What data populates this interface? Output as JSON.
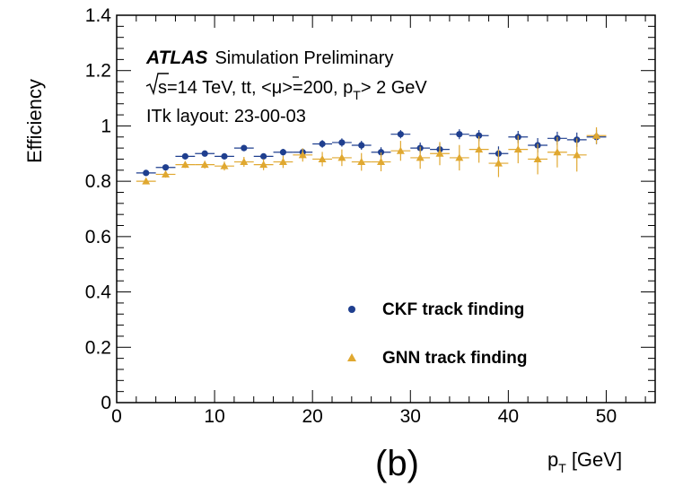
{
  "chart_data": {
    "type": "scatter",
    "xlabel_main": "p",
    "xlabel_sub": "T",
    "xlabel_unit": "[GeV]",
    "ylabel": "Efficiency",
    "xlim": [
      0,
      55
    ],
    "ylim": [
      0,
      1.4
    ],
    "x_ticks": [
      "0",
      "10",
      "20",
      "30",
      "40",
      "50"
    ],
    "y_ticks": [
      "0",
      "0.2",
      "0.4",
      "0.6",
      "0.8",
      "1",
      "1.2",
      "1.4"
    ],
    "annotations": {
      "atlas": "ATLAS",
      "atlas_suffix": "Simulation Preliminary",
      "line2_pre": "s",
      "line2_mid": "=14 TeV, tt, <μ>=200, p",
      "line2_sub": "T",
      "line2_post": "> 2 GeV",
      "line3": "ITk layout: 23-00-03"
    },
    "panel_label": "(b)",
    "series": [
      {
        "name": "CKF track finding",
        "color": "#1f3f8f",
        "marker": "circle",
        "points": [
          {
            "x": 3,
            "y": 0.83,
            "err": 0.005
          },
          {
            "x": 5,
            "y": 0.85,
            "err": 0.006
          },
          {
            "x": 7,
            "y": 0.89,
            "err": 0.007
          },
          {
            "x": 9,
            "y": 0.9,
            "err": 0.008
          },
          {
            "x": 11,
            "y": 0.89,
            "err": 0.009
          },
          {
            "x": 13,
            "y": 0.92,
            "err": 0.01
          },
          {
            "x": 15,
            "y": 0.89,
            "err": 0.01
          },
          {
            "x": 17,
            "y": 0.905,
            "err": 0.012
          },
          {
            "x": 19,
            "y": 0.905,
            "err": 0.013
          },
          {
            "x": 21,
            "y": 0.935,
            "err": 0.014
          },
          {
            "x": 23,
            "y": 0.94,
            "err": 0.015
          },
          {
            "x": 25,
            "y": 0.93,
            "err": 0.016
          },
          {
            "x": 27,
            "y": 0.905,
            "err": 0.018
          },
          {
            "x": 29,
            "y": 0.97,
            "err": 0.015
          },
          {
            "x": 31,
            "y": 0.92,
            "err": 0.02
          },
          {
            "x": 33,
            "y": 0.915,
            "err": 0.022
          },
          {
            "x": 35,
            "y": 0.97,
            "err": 0.018
          },
          {
            "x": 37,
            "y": 0.965,
            "err": 0.02
          },
          {
            "x": 39,
            "y": 0.9,
            "err": 0.026
          },
          {
            "x": 41,
            "y": 0.96,
            "err": 0.022
          },
          {
            "x": 43,
            "y": 0.93,
            "err": 0.026
          },
          {
            "x": 45,
            "y": 0.955,
            "err": 0.024
          },
          {
            "x": 47,
            "y": 0.95,
            "err": 0.026
          },
          {
            "x": 49,
            "y": 0.96,
            "err": 0.026
          }
        ]
      },
      {
        "name": "GNN track finding",
        "color": "#e0a830",
        "marker": "triangle",
        "points": [
          {
            "x": 3,
            "y": 0.8,
            "err": 0.01
          },
          {
            "x": 5,
            "y": 0.825,
            "err": 0.012
          },
          {
            "x": 7,
            "y": 0.86,
            "err": 0.012
          },
          {
            "x": 9,
            "y": 0.86,
            "err": 0.014
          },
          {
            "x": 11,
            "y": 0.855,
            "err": 0.016
          },
          {
            "x": 13,
            "y": 0.87,
            "err": 0.018
          },
          {
            "x": 15,
            "y": 0.86,
            "err": 0.02
          },
          {
            "x": 17,
            "y": 0.87,
            "err": 0.022
          },
          {
            "x": 19,
            "y": 0.895,
            "err": 0.024
          },
          {
            "x": 21,
            "y": 0.88,
            "err": 0.026
          },
          {
            "x": 23,
            "y": 0.885,
            "err": 0.03
          },
          {
            "x": 25,
            "y": 0.87,
            "err": 0.032
          },
          {
            "x": 27,
            "y": 0.87,
            "err": 0.034
          },
          {
            "x": 29,
            "y": 0.91,
            "err": 0.036
          },
          {
            "x": 31,
            "y": 0.885,
            "err": 0.04
          },
          {
            "x": 33,
            "y": 0.9,
            "err": 0.042
          },
          {
            "x": 35,
            "y": 0.885,
            "err": 0.046
          },
          {
            "x": 37,
            "y": 0.915,
            "err": 0.048
          },
          {
            "x": 39,
            "y": 0.865,
            "err": 0.05
          },
          {
            "x": 41,
            "y": 0.915,
            "err": 0.05
          },
          {
            "x": 43,
            "y": 0.88,
            "err": 0.055
          },
          {
            "x": 45,
            "y": 0.905,
            "err": 0.055
          },
          {
            "x": 47,
            "y": 0.895,
            "err": 0.06
          },
          {
            "x": 49,
            "y": 0.965,
            "err": 0.03
          }
        ]
      }
    ],
    "legend_placement": "bottom-right",
    "grid": false
  }
}
